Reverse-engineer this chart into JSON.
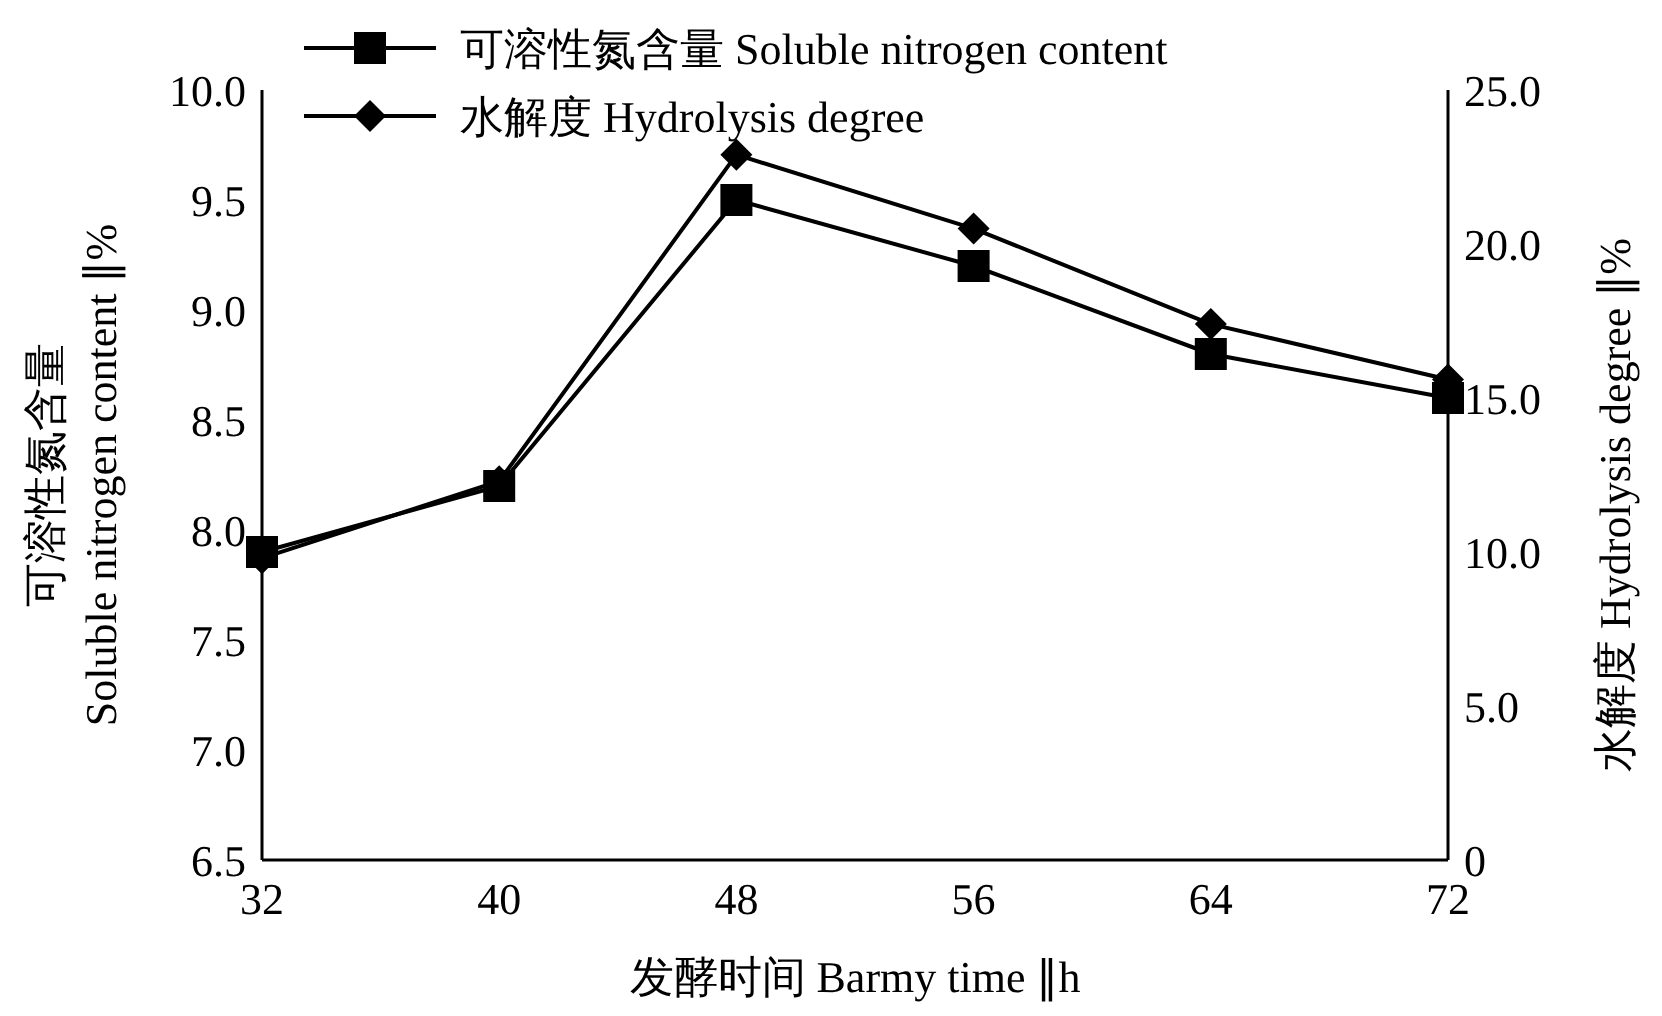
{
  "chart_data": {
    "type": "line",
    "xlabel": "发酵时间 Barmy time ∥h",
    "ylabel": "可溶性氮含量\nSoluble nitrogen content ∥%",
    "y2label": "水解度 Hydrolysis degree ∥%",
    "x": [
      32,
      40,
      48,
      56,
      64,
      72
    ],
    "xlim": [
      32,
      72
    ],
    "xticks": [
      32,
      40,
      48,
      56,
      64,
      72
    ],
    "ylim": [
      6.5,
      10
    ],
    "yticks": [
      {
        "value": 6.5,
        "label": "6.5"
      },
      {
        "value": 7,
        "label": "7.0"
      },
      {
        "value": 7.5,
        "label": "7.5"
      },
      {
        "value": 8,
        "label": "8.0"
      },
      {
        "value": 8.5,
        "label": "8.5"
      },
      {
        "value": 9,
        "label": "9.0"
      },
      {
        "value": 9.5,
        "label": "9.5"
      },
      {
        "value": 10,
        "label": "10.0"
      }
    ],
    "y2lim": [
      0,
      25
    ],
    "y2ticks": [
      0,
      {
        "value": 5,
        "label": "5.0"
      },
      {
        "value": 10,
        "label": "10.0"
      },
      {
        "value": 15,
        "label": "15.0"
      },
      {
        "value": 20,
        "label": "20.0"
      },
      {
        "value": 25,
        "label": "25.0"
      }
    ],
    "legend": "top left",
    "grid": false,
    "series": [
      {
        "name": "可溶性氮含量 Soluble nitrogen content",
        "color": "#000000",
        "marker": "square",
        "values": [
          7.9,
          8.2,
          9.5,
          9.2,
          8.8,
          8.6
        ]
      },
      {
        "name": "水解度 Hydrolysis degree",
        "color": "#000000",
        "marker": "diamond",
        "axis": "y2",
        "values": [
          9.8,
          12.3,
          22.9,
          20.5,
          17.4,
          15.6
        ]
      }
    ]
  }
}
